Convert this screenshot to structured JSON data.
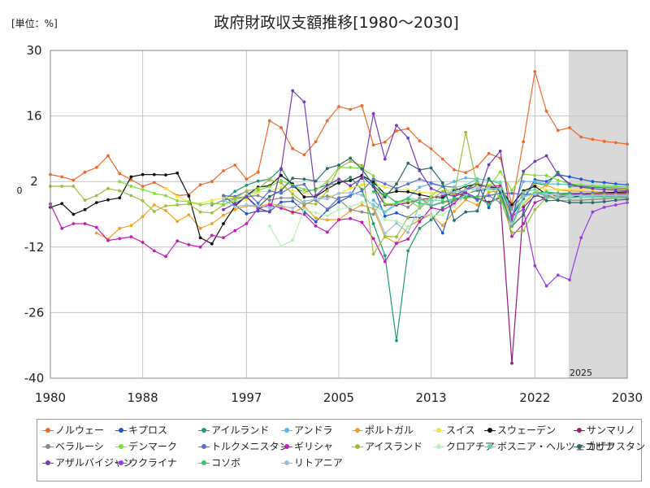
{
  "chart_data": {
    "type": "line",
    "title": "政府財政収支額推移[1980～2030]",
    "unit_label": "[単位：%]",
    "x_ticks": [
      "1980",
      "1988",
      "1997",
      "2005",
      "2013",
      "2022",
      "2030"
    ],
    "y_ticks": [
      "30",
      "16",
      "2",
      "-12",
      "-26",
      "-40"
    ],
    "zero_label": "0",
    "forecast_label": "2025",
    "xlim": [
      1980,
      2030
    ],
    "ylim": [
      -40,
      30
    ],
    "forecast_start": 2025,
    "grid": true,
    "legend_position": "bottom",
    "series": [
      {
        "name": "ノルウェー",
        "color": "#ee6a2a",
        "start": 1980,
        "values": [
          3.5,
          3.0,
          2.3,
          4.0,
          5.0,
          7.5,
          3.7,
          2.4,
          1.0,
          1.8,
          0.5,
          -1.0,
          -0.8,
          1.3,
          2.0,
          4.3,
          5.5,
          2.5,
          4.0,
          15.0,
          13.5,
          9.0,
          7.7,
          10.5,
          15.0,
          18.0,
          17.4,
          18.2,
          9.8,
          10.4,
          12.8,
          13.3,
          10.7,
          9.0,
          6.8,
          4.5,
          3.9,
          5.2,
          8.0,
          7.0,
          -3.0,
          10.5,
          25.5,
          17.0,
          12.9,
          13.5,
          11.5,
          11.0,
          10.6,
          10.3,
          10.0
        ]
      },
      {
        "name": "キプロス",
        "color": "#1a56d6",
        "start": 1995,
        "values": [
          -1.0,
          -3.0,
          -4.9,
          -4.3,
          -4.4,
          -2.4,
          -2.2,
          -4.4,
          -6.6,
          -4.1,
          -2.4,
          -1.1,
          3.2,
          0.9,
          -5.4,
          -4.7,
          -5.7,
          -5.6,
          -5.1,
          -9.0,
          -1.0,
          0.3,
          1.9,
          -3.6,
          1.3,
          -5.4,
          -1.7,
          2.4,
          2.0,
          3.5,
          3.0,
          2.5,
          2.0,
          1.8,
          1.5,
          1.3
        ]
      },
      {
        "name": "アイルランド",
        "color": "#1f9a6f",
        "start": 1995,
        "values": [
          -2.1,
          -0.1,
          1.2,
          2.1,
          2.5,
          4.8,
          0.9,
          -0.3,
          0.4,
          1.3,
          1.6,
          2.9,
          0.3,
          -7.0,
          -13.8,
          -32.0,
          -12.8,
          -8.0,
          -6.2,
          -3.6,
          -2.0,
          -0.7,
          0.1,
          0.3,
          0.5,
          -5.0,
          -1.6,
          1.7,
          1.2,
          4.0,
          1.0,
          1.0,
          0.8,
          0.7,
          0.6,
          0.5
        ]
      },
      {
        "name": "アンドラ",
        "color": "#57b8e8",
        "start": 2008,
        "values": [
          -2.0,
          -4.5,
          -3.0,
          -1.5,
          0.8,
          1.5,
          1.0,
          2.0,
          2.8,
          2.5,
          2.3,
          1.5,
          -4.0,
          2.0,
          2.0,
          1.5,
          1.5,
          1.3,
          1.2,
          1.1,
          1.0,
          0.9,
          0.9
        ]
      },
      {
        "name": "ポルトガル",
        "color": "#f0a21a",
        "start": 1984,
        "values": [
          -9.0,
          -10.3,
          -8.0,
          -7.4,
          -5.5,
          -3.0,
          -4.2,
          -6.5,
          -5.1,
          -8.0,
          -7.0,
          -5.2,
          -4.0,
          -3.2,
          -3.4,
          -2.7,
          -3.2,
          -4.8,
          -3.3,
          -5.8,
          -6.2,
          -6.1,
          -4.3,
          -3.0,
          -3.8,
          -9.8,
          -11.2,
          -7.7,
          -6.2,
          -5.1,
          -7.4,
          -4.4,
          -1.9,
          -3.0,
          -0.3,
          0.1,
          -5.8,
          -2.9,
          -0.3,
          1.2,
          0.2,
          0.0,
          -0.1,
          -0.2,
          -0.3,
          -0.3,
          -0.4
        ]
      },
      {
        "name": "スイス",
        "color": "#f2e53c",
        "start": 1990,
        "values": [
          0.5,
          -1.2,
          -2.3,
          -2.7,
          -2.0,
          -1.5,
          -1.3,
          -1.8,
          -0.2,
          -0.1,
          0.8,
          0.0,
          -0.2,
          -1.1,
          -1.2,
          -0.7,
          0.6,
          1.3,
          1.7,
          0.8,
          0.3,
          0.2,
          -0.2,
          -0.5,
          -0.2,
          0.5,
          0.2,
          1.1,
          1.3,
          1.3,
          -3.0,
          -0.3,
          1.2,
          0.2,
          0.3,
          0.3,
          0.3,
          0.3,
          0.3,
          0.3,
          0.3
        ]
      },
      {
        "name": "スウェーデン",
        "color": "#111111",
        "start": 1980,
        "values": [
          -3.5,
          -2.7,
          -5.0,
          -4.0,
          -2.5,
          -1.9,
          -1.5,
          3.0,
          3.5,
          3.5,
          3.4,
          3.8,
          -1.1,
          -10.0,
          -11.3,
          -7.0,
          -3.3,
          -1.0,
          0.8,
          1.1,
          3.3,
          1.5,
          -1.3,
          -1.2,
          0.4,
          1.8,
          2.2,
          3.3,
          1.9,
          -0.7,
          -0.1,
          -0.2,
          -0.8,
          -1.3,
          -1.5,
          0.0,
          1.0,
          1.4,
          0.8,
          0.6,
          -3.0,
          0.0,
          1.0,
          -0.8,
          -1.5,
          -1.5,
          -1.0,
          -0.5,
          -0.4,
          -0.3,
          -0.2
        ]
      },
      {
        "name": "サンマリノ",
        "color": "#9a1a7a",
        "start": 2008,
        "values": [
          1.0,
          -3.0,
          -3.0,
          -2.5,
          -1.9,
          -1.5,
          -1.0,
          -0.5,
          -1.0,
          -1.6,
          -2.4,
          -1.5,
          -36.8,
          -3.5,
          -1.0,
          -1.5,
          -0.8,
          -0.8,
          -0.6,
          -0.6,
          -0.6,
          -0.6,
          -0.6
        ]
      },
      {
        "name": "ベラルーシ",
        "color": "#888888",
        "start": 1994,
        "values": [
          -3.0,
          -2.0,
          -1.6,
          -1.2,
          -1.0,
          -2.0,
          -1.5,
          -1.5,
          -3.0,
          -1.8,
          -1.1,
          -1.8,
          -4.0,
          -4.5,
          -5.0,
          -0.7,
          -2.5,
          -3.5,
          -1.5,
          -3.2,
          -2.5,
          -2.0,
          -1.5,
          -1.2,
          -1.0,
          -2.5,
          -3.5,
          -1.0,
          -0.5,
          -1.0,
          -2.0,
          -2.0,
          -2.0,
          -1.8,
          -1.7,
          -1.5,
          -1.5
        ]
      },
      {
        "name": "デンマーク",
        "color": "#7ee03a",
        "start": 1986,
        "values": [
          2.0,
          1.0,
          0.3,
          -0.5,
          -1.0,
          -2.1,
          -2.3,
          -3.0,
          -2.6,
          -2.9,
          -2.1,
          -1.0,
          0.1,
          0.9,
          2.2,
          1.2,
          0.3,
          0.1,
          2.0,
          5.0,
          5.0,
          4.8,
          3.2,
          -2.8,
          -2.7,
          -2.1,
          -3.5,
          -1.2,
          1.1,
          -1.3,
          0.0,
          1.8,
          0.8,
          4.1,
          0.2,
          3.6,
          3.3,
          3.3,
          2.3,
          1.5,
          1.3,
          1.1,
          1.0,
          1.0,
          0.9
        ]
      },
      {
        "name": "トルクメニスタン",
        "color": "#5870d0",
        "start": 1995,
        "values": [
          -1.0,
          -1.2,
          -0.1,
          -2.6,
          0.0,
          -0.5,
          1.0,
          1.4,
          -2.0,
          -3.9,
          -1.5,
          -1.0,
          0.0,
          2.5,
          1.5,
          0.5,
          1.5,
          2.5,
          1.7,
          1.0,
          0.8,
          -0.5,
          -2.0,
          -1.0,
          -0.5,
          -0.5,
          -0.8,
          -0.5,
          -0.5,
          -0.5,
          -0.5,
          -0.5,
          -0.5,
          -0.5,
          -0.5,
          -0.5
        ]
      },
      {
        "name": "ギリシャ",
        "color": "#c31ab8",
        "start": 1980,
        "values": [
          -2.8,
          -8.0,
          -7.0,
          -7.0,
          -7.8,
          -10.6,
          -10.2,
          -9.8,
          -11.0,
          -12.8,
          -14.0,
          -10.7,
          -11.5,
          -12.0,
          -9.5,
          -10.0,
          -8.5,
          -7.0,
          -3.8,
          -3.0,
          -3.7,
          -4.5,
          -5.0,
          -7.5,
          -8.8,
          -6.2,
          -5.9,
          -6.7,
          -10.2,
          -15.1,
          -11.2,
          -10.3,
          -6.6,
          -3.6,
          -4.1,
          -2.8,
          0.2,
          1.1,
          0.9,
          1.1,
          -9.7,
          -7.0,
          -2.5,
          -1.5,
          -1.3,
          -1.0,
          -0.9,
          -0.8,
          -0.7,
          -0.6,
          -0.5
        ]
      },
      {
        "name": "アイスランド",
        "color": "#a0be3a",
        "start": 1980,
        "values": [
          1.0,
          1.0,
          1.0,
          -2.0,
          -1.0,
          0.5,
          0.0,
          -1.0,
          -2.1,
          -4.4,
          -3.2,
          -3.0,
          -2.8,
          -4.5,
          -4.7,
          -3.0,
          -1.6,
          0.0,
          0.5,
          2.4,
          1.7,
          -0.7,
          -2.6,
          -2.8,
          0.0,
          4.9,
          6.3,
          5.4,
          -13.5,
          -9.7,
          -9.8,
          -5.6,
          -3.7,
          -1.8,
          -0.1,
          -0.8,
          12.5,
          1.0,
          0.9,
          -1.5,
          -8.9,
          -8.5,
          -4.0,
          -1.5,
          -1.0,
          -1.0,
          -1.0,
          -0.8,
          -0.8,
          -0.8,
          -0.8
        ]
      },
      {
        "name": "クロアチア",
        "color": "#b8f0b8",
        "start": 1999,
        "values": [
          -7.5,
          -11.8,
          -10.5,
          -4.0,
          -4.7,
          -5.3,
          -4.0,
          -3.4,
          -2.4,
          -2.8,
          -6.2,
          -6.4,
          -7.8,
          -5.3,
          -5.3,
          -5.1,
          -3.2,
          -1.0,
          0.8,
          0.2,
          0.2,
          -7.3,
          -2.5,
          0.1,
          -0.7,
          -1.5,
          -1.5,
          -1.5,
          -1.4,
          -1.3,
          -1.3,
          -1.2
        ]
      },
      {
        "name": "ボスニア・ヘルツェゴビナ",
        "color": "#60d8a0",
        "start": 2008,
        "values": [
          -3.0,
          -4.5,
          -2.5,
          -1.5,
          -2.0,
          -2.0,
          -2.0,
          0.7,
          1.2,
          2.6,
          2.2,
          1.9,
          -5.2,
          -0.3,
          0.3,
          -1.5,
          -1.5,
          -1.4,
          -1.4,
          -1.3,
          -1.3,
          -1.2,
          -1.2
        ]
      },
      {
        "name": "カザフスタン",
        "color": "#2a6a6a",
        "start": 1997,
        "values": [
          -1.2,
          -3.5,
          -1.2,
          0.1,
          2.7,
          2.5,
          2.1,
          4.8,
          5.5,
          7.0,
          4.7,
          1.2,
          -1.3,
          1.5,
          5.9,
          4.5,
          4.9,
          1.7,
          -6.3,
          -4.5,
          -4.3,
          2.6,
          -0.3,
          -7.5,
          -5.1,
          -0.5,
          -2.1,
          -2.0,
          -2.5,
          -2.5,
          -2.5,
          -2.3,
          -2.0,
          -1.8
        ]
      },
      {
        "name": "アザルバイジャン",
        "color": "#7a3ab8",
        "start": 1995,
        "values": [
          -4.0,
          -2.7,
          -1.3,
          -3.7,
          -4.5,
          4.6,
          21.4,
          19.0,
          -1.0,
          1.2,
          2.5,
          1.1,
          2.7,
          16.5,
          6.8,
          14.0,
          11.3,
          4.3,
          0.5,
          -0.5,
          -1.2,
          -0.4,
          -1.5,
          5.6,
          8.5,
          -6.5,
          4.2,
          6.3,
          7.5,
          3.5,
          1.5,
          0.8,
          0.5,
          0.3,
          0.2,
          0.1
        ]
      },
      {
        "name": "ウクライナ",
        "color": "#9a3ae8",
        "start": 2020,
        "values": [
          -5.3,
          -4.0,
          -16.0,
          -20.3,
          -18.0,
          -19.0,
          -10.0,
          -4.5,
          -3.5,
          -3.0,
          -2.5
        ]
      },
      {
        "name": "コソボ",
        "color": "#3ac860",
        "start": 2008,
        "values": [
          -0.2,
          -0.7,
          -2.4,
          -1.7,
          -2.6,
          -3.1,
          -2.4,
          -1.6,
          -1.3,
          -1.3,
          -2.9,
          -1.0,
          -7.6,
          -1.3,
          -0.5,
          -0.2,
          -0.5,
          -0.8,
          -1.0,
          -1.1,
          -1.2,
          -1.2,
          -1.2
        ]
      },
      {
        "name": "リトアニア",
        "color": "#9ac0e0",
        "start": 1995,
        "values": [
          -1.9,
          -3.4,
          -3.0,
          -3.2,
          -3.6,
          -3.2,
          -3.7,
          -2.2,
          -1.7,
          -1.7,
          -0.5,
          -0.4,
          -0.9,
          -3.2,
          -9.1,
          -6.9,
          -8.9,
          -3.1,
          -2.6,
          -0.6,
          -0.3,
          0.2,
          0.5,
          0.6,
          0.5,
          -7.0,
          -1.1,
          -0.7,
          -0.7,
          -0.9,
          -1.0,
          -1.0,
          -1.0,
          -1.0,
          -1.0,
          -1.0
        ]
      }
    ]
  }
}
